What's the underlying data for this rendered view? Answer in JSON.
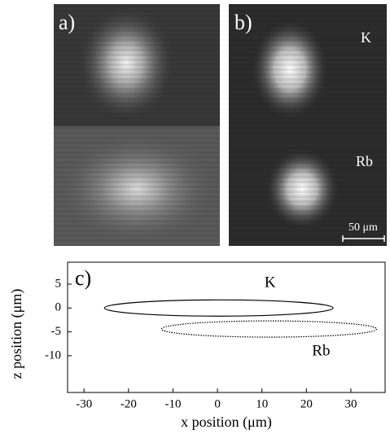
{
  "panels": [
    {
      "label": "a)"
    },
    {
      "label": "b)",
      "annotations": [
        "K",
        "Rb"
      ],
      "scale_bar": "50 μm"
    }
  ],
  "chart_data": {
    "type": "ellipse",
    "panel_label": "c)",
    "xlabel": "x position (μm)",
    "ylabel": "z position (μm)",
    "xlim": [
      -33.7,
      37.7
    ],
    "xticks": [
      -30,
      -20,
      -10,
      0,
      10,
      20,
      30
    ],
    "ylim": [
      -17.7,
      9.6
    ],
    "yticks": [
      5,
      0,
      -5,
      -10
    ],
    "series": [
      {
        "name": "K",
        "color": "#000000",
        "dash": "solid",
        "center": [
          0.3,
          0
        ],
        "radii": [
          25.7,
          1.7
        ]
      },
      {
        "name": "Rb",
        "color": "#000000",
        "dash": "dotted",
        "center": [
          11.6,
          -4.4
        ],
        "radii": [
          24.2,
          1.7
        ]
      }
    ]
  }
}
